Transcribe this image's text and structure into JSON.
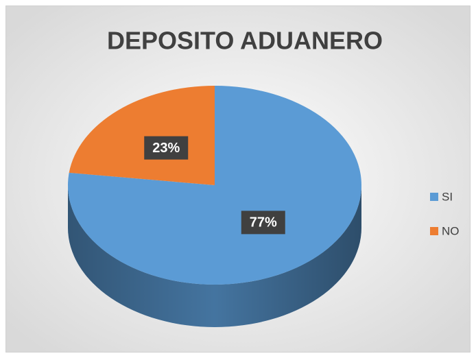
{
  "chart_data": {
    "type": "pie",
    "title": "DEPOSITO ADUANERO",
    "categories": [
      "SI",
      "NO"
    ],
    "values": [
      77,
      23
    ],
    "value_labels": [
      "77%",
      "23%"
    ],
    "colors": [
      "#5b9bd5",
      "#ed7d31"
    ],
    "legend": "right"
  }
}
